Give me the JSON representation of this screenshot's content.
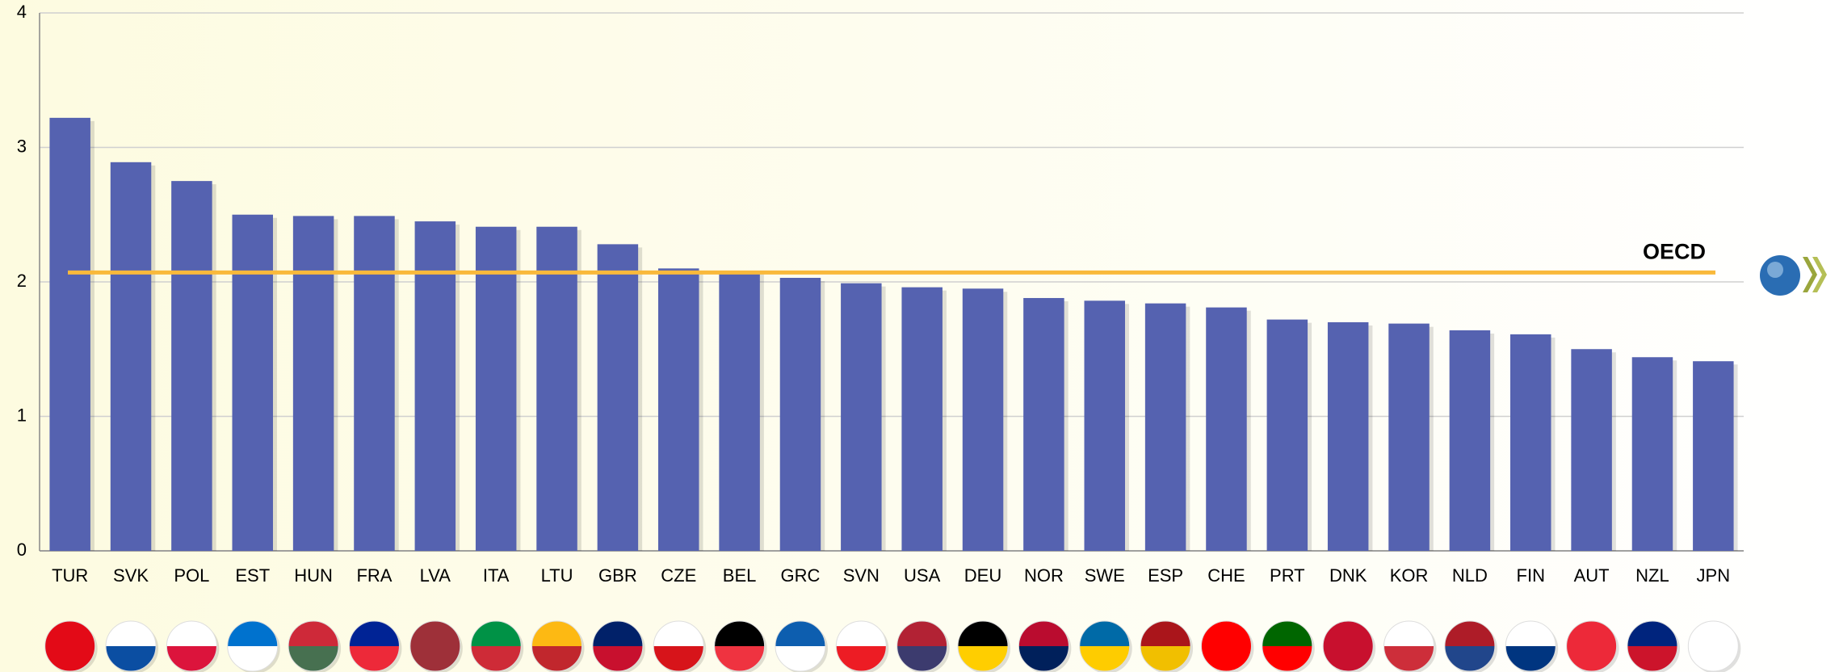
{
  "chart_data": {
    "type": "bar",
    "categories": [
      "TUR",
      "SVK",
      "POL",
      "EST",
      "HUN",
      "FRA",
      "LVA",
      "ITA",
      "LTU",
      "GBR",
      "CZE",
      "BEL",
      "GRC",
      "SVN",
      "USA",
      "DEU",
      "NOR",
      "SWE",
      "ESP",
      "CHE",
      "PRT",
      "DNK",
      "KOR",
      "NLD",
      "FIN",
      "AUT",
      "NZL",
      "JPN"
    ],
    "values": [
      3.22,
      2.89,
      2.75,
      2.5,
      2.49,
      2.49,
      2.45,
      2.41,
      2.41,
      2.28,
      2.1,
      2.08,
      2.03,
      1.99,
      1.96,
      1.95,
      1.88,
      1.86,
      1.84,
      1.81,
      1.72,
      1.7,
      1.69,
      1.64,
      1.61,
      1.5,
      1.44,
      1.41
    ],
    "color": "#5562b0",
    "reference": {
      "name": "OECD",
      "value": 2.07,
      "color": "#f9b93b"
    },
    "ylim": [
      0,
      4
    ],
    "yticks": [
      0,
      1,
      2,
      3,
      4
    ],
    "grid": true
  }
}
